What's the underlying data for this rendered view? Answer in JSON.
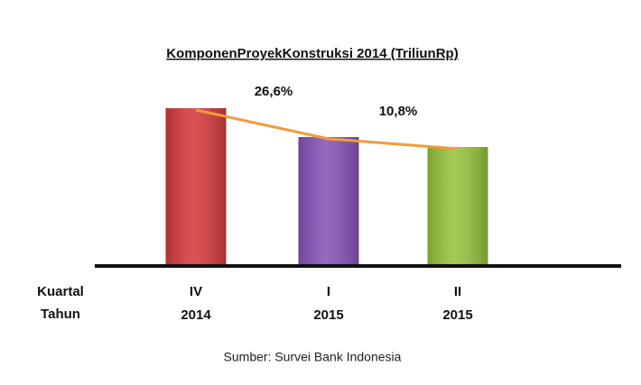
{
  "chart_data": {
    "type": "bar",
    "title": "KomponenProyekKonstruksi 2014 (TriliunRp)",
    "row_labels": [
      "Kuartal",
      "Tahun"
    ],
    "categories": [
      "IV",
      "I",
      "II"
    ],
    "years": [
      "2014",
      "2015",
      "2015"
    ],
    "values": [
      175,
      143,
      132
    ],
    "colors": [
      "#d63c3c",
      "#8853b8",
      "#98c43c"
    ],
    "line_color": "#f39a3c",
    "annotations": [
      "26,6%",
      "10,8%"
    ],
    "source": "Sumber: Survei Bank Indonesia"
  }
}
